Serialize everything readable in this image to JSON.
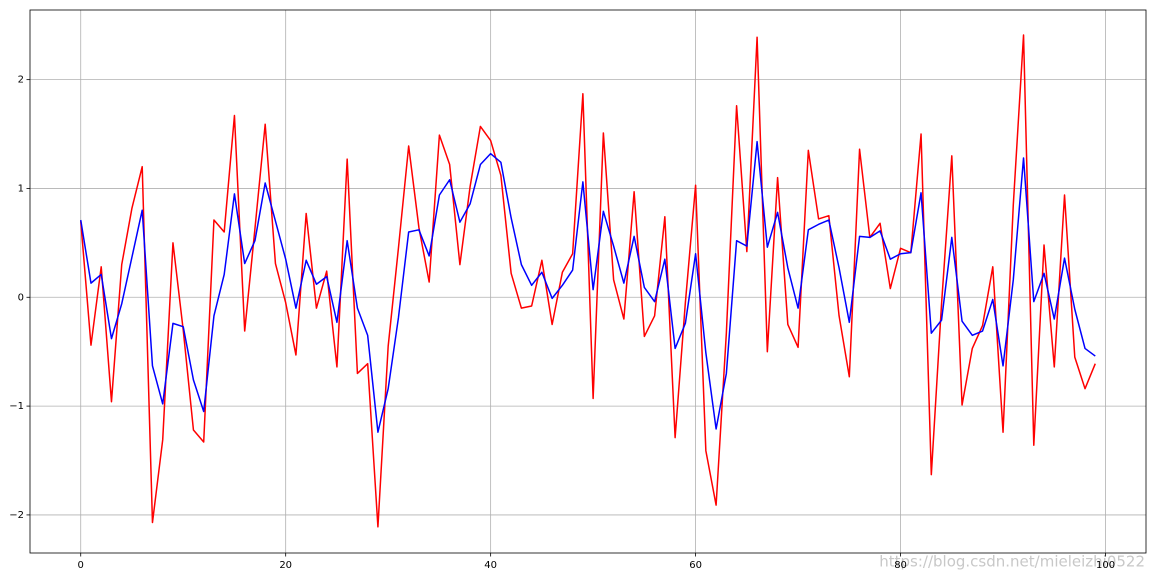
{
  "chart_data": {
    "type": "line",
    "x": [
      0,
      1,
      2,
      3,
      4,
      5,
      6,
      7,
      8,
      9,
      10,
      11,
      12,
      13,
      14,
      15,
      16,
      17,
      18,
      19,
      20,
      21,
      22,
      23,
      24,
      25,
      26,
      27,
      28,
      29,
      30,
      31,
      32,
      33,
      34,
      35,
      36,
      37,
      38,
      39,
      40,
      41,
      42,
      43,
      44,
      45,
      46,
      47,
      48,
      49,
      50,
      51,
      52,
      53,
      54,
      55,
      56,
      57,
      58,
      59,
      60,
      61,
      62,
      63,
      64,
      65,
      66,
      67,
      68,
      69,
      70,
      71,
      72,
      73,
      74,
      75,
      76,
      77,
      78,
      79,
      80,
      81,
      82,
      83,
      84,
      85,
      86,
      87,
      88,
      89,
      90,
      91,
      92,
      93,
      94,
      95,
      96,
      97,
      98,
      99
    ],
    "series": [
      {
        "color": "#ff0000",
        "values": [
          0.7,
          -0.44,
          0.28,
          -0.96,
          0.3,
          0.82,
          1.2,
          -2.07,
          -1.31,
          0.5,
          -0.3,
          -1.22,
          -1.33,
          0.71,
          0.6,
          1.67,
          -0.31,
          0.63,
          1.59,
          0.31,
          -0.05,
          -0.53,
          0.77,
          -0.1,
          0.24,
          -0.64,
          1.27,
          -0.7,
          -0.61,
          -2.11,
          -0.45,
          0.45,
          1.39,
          0.64,
          0.14,
          1.49,
          1.22,
          0.3,
          1.02,
          1.57,
          1.44,
          1.12,
          0.22,
          -0.1,
          -0.08,
          0.34,
          -0.25,
          0.23,
          0.4,
          1.87,
          -0.93,
          1.51,
          0.16,
          -0.2,
          0.97,
          -0.36,
          -0.17,
          0.74,
          -1.29,
          -0.05,
          1.03,
          -1.41,
          -1.91,
          -0.33,
          1.76,
          0.42,
          2.39,
          -0.5,
          1.1,
          -0.25,
          -0.46,
          1.35,
          0.72,
          0.75,
          -0.17,
          -0.73,
          1.36,
          0.55,
          0.68,
          0.08,
          0.45,
          0.41,
          1.5,
          -1.63,
          -0.06,
          1.3,
          -0.99,
          -0.47,
          -0.26,
          0.28,
          -1.24,
          0.85,
          2.41,
          -1.36,
          0.48,
          -0.64,
          0.94,
          -0.55,
          -0.84,
          -0.61
        ]
      },
      {
        "color": "#0000ff",
        "values": [
          0.71,
          0.13,
          0.21,
          -0.38,
          -0.06,
          0.37,
          0.8,
          -0.63,
          -0.98,
          -0.24,
          -0.27,
          -0.76,
          -1.05,
          -0.17,
          0.21,
          0.95,
          0.31,
          0.52,
          1.05,
          0.7,
          0.35,
          -0.1,
          0.34,
          0.12,
          0.19,
          -0.23,
          0.52,
          -0.1,
          -0.35,
          -1.24,
          -0.84,
          -0.19,
          0.6,
          0.62,
          0.38,
          0.94,
          1.08,
          0.69,
          0.86,
          1.22,
          1.32,
          1.24,
          0.73,
          0.3,
          0.11,
          0.23,
          -0.01,
          0.11,
          0.25,
          1.06,
          0.07,
          0.79,
          0.47,
          0.13,
          0.56,
          0.09,
          -0.04,
          0.35,
          -0.47,
          -0.24,
          0.4,
          -0.51,
          -1.21,
          -0.7,
          0.52,
          0.47,
          1.43,
          0.46,
          0.78,
          0.27,
          -0.1,
          0.62,
          0.67,
          0.71,
          0.27,
          -0.23,
          0.56,
          0.55,
          0.61,
          0.35,
          0.4,
          0.41,
          0.96,
          -0.33,
          -0.21,
          0.55,
          -0.22,
          -0.35,
          -0.31,
          -0.02,
          -0.63,
          0.16,
          1.28,
          -0.04,
          0.22,
          -0.2,
          0.36,
          -0.11,
          -0.47,
          -0.54
        ]
      }
    ],
    "xlim": [
      -4.95,
      103.95
    ],
    "xticks": [
      0,
      20,
      40,
      60,
      80,
      100
    ],
    "ylim": [
      -2.35,
      2.64
    ],
    "yticks": [
      {
        "value": -2,
        "label": "−2"
      },
      {
        "value": -1,
        "label": "−1"
      },
      0,
      1,
      2
    ],
    "grid": true,
    "watermark": "https://blog.csdn.net/mieleizhi0522"
  }
}
